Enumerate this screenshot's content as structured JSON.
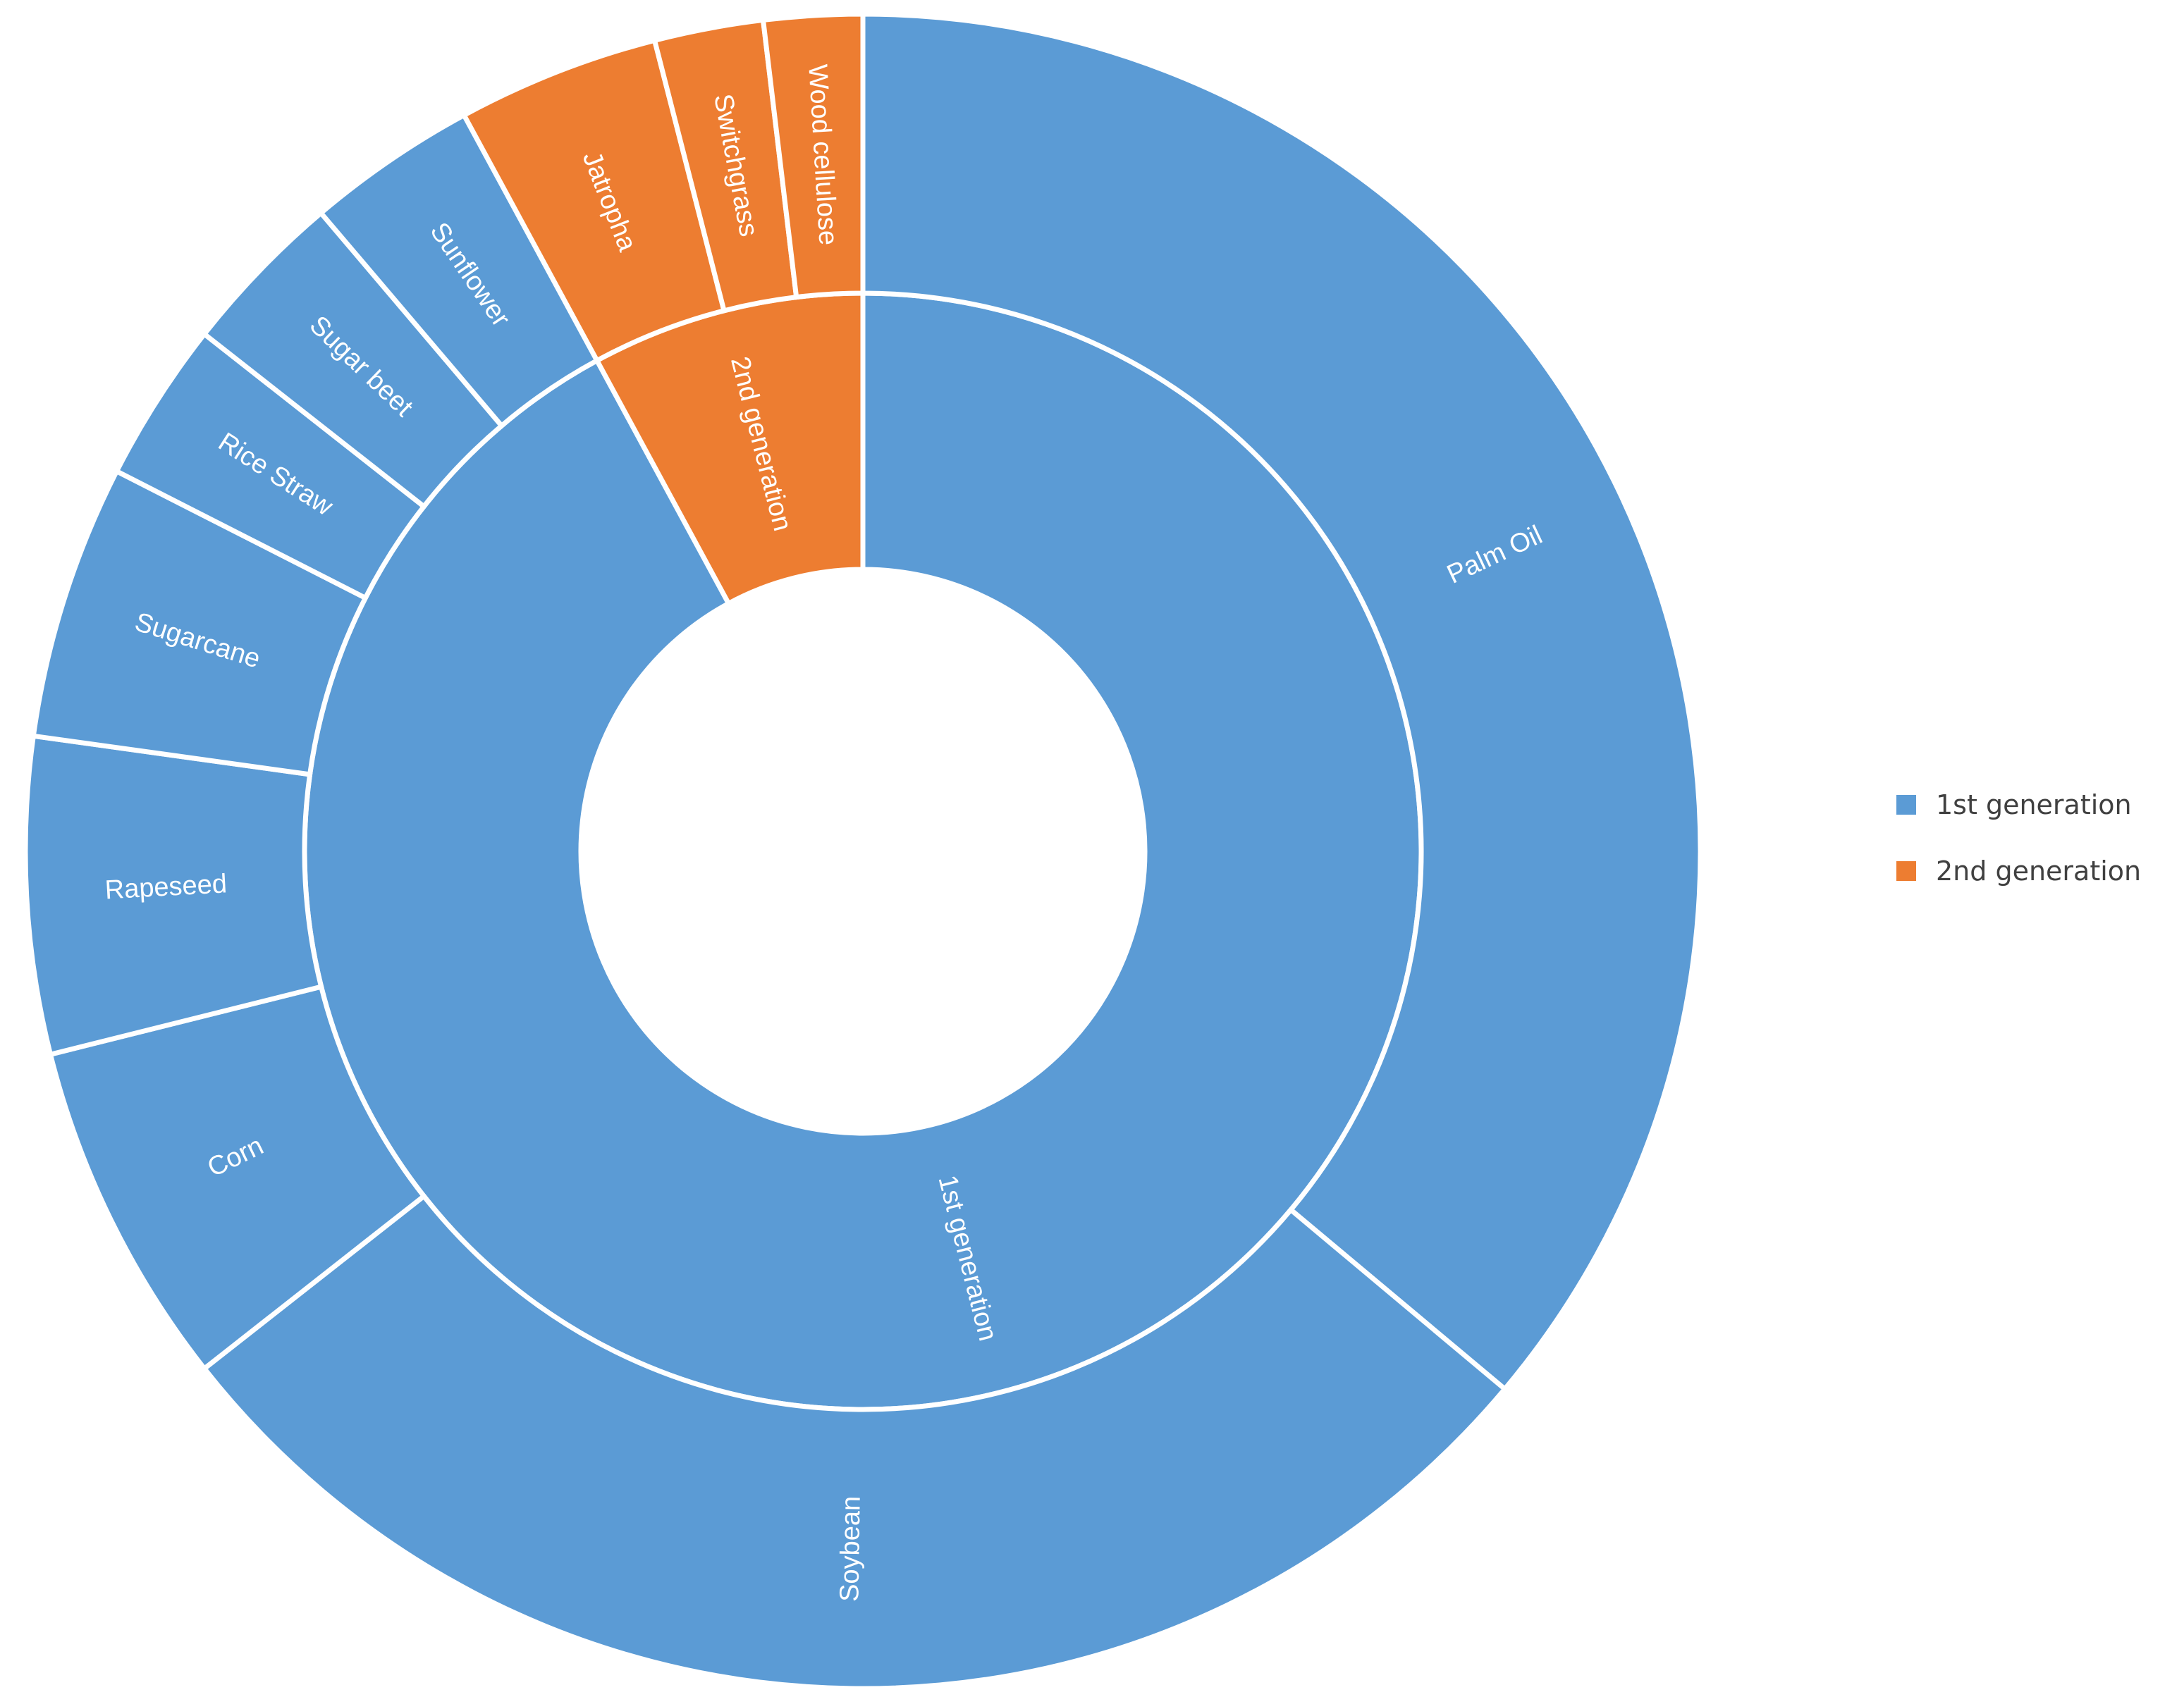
{
  "chart_data": {
    "type": "sunburst",
    "title": "",
    "inner_ring": [
      {
        "name": "1st generation",
        "value": 92.1,
        "color": "#5B9BD5"
      },
      {
        "name": "2nd generation",
        "value": 7.9,
        "color": "#ED7D31"
      }
    ],
    "outer_ring": [
      {
        "name": "Palm Oil",
        "parent": "1st generation",
        "value": 36.1,
        "color": "#5B9BD5"
      },
      {
        "name": "Soybean",
        "parent": "1st generation",
        "value": 28.3,
        "color": "#5B9BD5"
      },
      {
        "name": "Corn",
        "parent": "1st generation",
        "value": 6.7,
        "color": "#5B9BD5"
      },
      {
        "name": "Rapeseed",
        "parent": "1st generation",
        "value": 6.1,
        "color": "#5B9BD5"
      },
      {
        "name": "Sugarcane",
        "parent": "1st generation",
        "value": 5.3,
        "color": "#5B9BD5"
      },
      {
        "name": "Rice Straw",
        "parent": "1st generation",
        "value": 3.1,
        "color": "#5B9BD5"
      },
      {
        "name": "Sugar beet",
        "parent": "1st generation",
        "value": 3.2,
        "color": "#5B9BD5"
      },
      {
        "name": "Sunflower",
        "parent": "1st generation",
        "value": 3.3,
        "color": "#5B9BD5"
      },
      {
        "name": "Jatropha",
        "parent": "2nd generation",
        "value": 3.9,
        "color": "#ED7D31"
      },
      {
        "name": "Switchgrass",
        "parent": "2nd generation",
        "value": 2.1,
        "color": "#ED7D31"
      },
      {
        "name": "Wood cellulose",
        "parent": "2nd generation",
        "value": 1.9,
        "color": "#ED7D31"
      }
    ],
    "legend": {
      "position": "right",
      "items": [
        {
          "label": "1st generation",
          "color": "#5B9BD5"
        },
        {
          "label": "2nd generation",
          "color": "#ED7D31"
        }
      ]
    },
    "label_color": "#ffffff",
    "separator_color": "#ffffff"
  }
}
